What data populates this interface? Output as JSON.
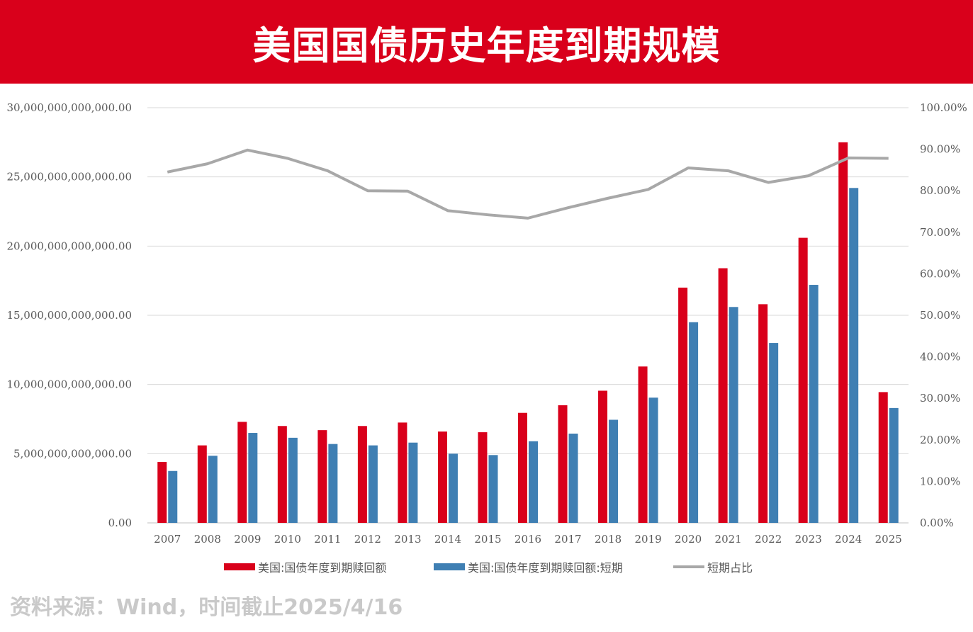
{
  "header": {
    "title": "美国国债历史年度到期规模"
  },
  "source": "资料来源：Wind，时间截止2025/4/16",
  "colors": {
    "header": "#d9001b",
    "series_total": "#d9001b",
    "series_short": "#3f7fb3",
    "series_ratio": "#a8a8a8"
  },
  "legend": [
    {
      "label": "美国:国债年度到期赎回额",
      "kind": "bar",
      "color": "#d9001b"
    },
    {
      "label": "美国:国债年度到期赎回额:短期",
      "kind": "bar",
      "color": "#3f7fb3"
    },
    {
      "label": "短期占比",
      "kind": "line",
      "color": "#a8a8a8"
    }
  ],
  "chart_data": {
    "type": "bar",
    "categories": [
      "2007",
      "2008",
      "2009",
      "2010",
      "2011",
      "2012",
      "2013",
      "2014",
      "2015",
      "2016",
      "2017",
      "2018",
      "2019",
      "2020",
      "2021",
      "2022",
      "2023",
      "2024",
      "2025"
    ],
    "series": [
      {
        "name": "美国:国债年度到期赎回额",
        "type": "bar",
        "axis": "left",
        "values": [
          4400000000000.0,
          5600000000000.0,
          7300000000000.0,
          7000000000000.0,
          6700000000000.0,
          7000000000000.0,
          7250000000000.0,
          6600000000000.0,
          6550000000000.0,
          7950000000000.0,
          8500000000000.0,
          9550000000000.0,
          11300000000000.0,
          17000000000000.0,
          18400000000000.0,
          15800000000000.0,
          20600000000000.0,
          27500000000000.0,
          9450000000000.0
        ]
      },
      {
        "name": "美国:国债年度到期赎回额:短期",
        "type": "bar",
        "axis": "left",
        "values": [
          3750000000000.0,
          4850000000000.0,
          6500000000000.0,
          6150000000000.0,
          5700000000000.0,
          5600000000000.0,
          5800000000000.0,
          5000000000000.0,
          4900000000000.0,
          5900000000000.0,
          6450000000000.0,
          7450000000000.0,
          9050000000000.0,
          14500000000000.0,
          15600000000000.0,
          13000000000000.0,
          17200000000000.0,
          24200000000000.0,
          8300000000000.0
        ]
      },
      {
        "name": "短期占比",
        "type": "line",
        "axis": "right",
        "values": [
          84.5,
          86.5,
          89.8,
          87.8,
          84.8,
          80.0,
          79.9,
          75.2,
          74.2,
          73.4,
          75.9,
          78.2,
          80.3,
          85.5,
          84.8,
          82.0,
          83.6,
          87.9,
          87.8
        ]
      }
    ],
    "left_axis": {
      "ylim": [
        0,
        30000000000000
      ],
      "ticks": [
        "0.00",
        "5,000,000,000,000.00",
        "10,000,000,000,000.00",
        "15,000,000,000,000.00",
        "20,000,000,000,000.00",
        "25,000,000,000,000.00",
        "30,000,000,000,000.00"
      ]
    },
    "right_axis": {
      "ylim": [
        0,
        100
      ],
      "ticks": [
        "0.00%",
        "10.00%",
        "20.00%",
        "30.00%",
        "40.00%",
        "50.00%",
        "60.00%",
        "70.00%",
        "80.00%",
        "90.00%",
        "100.00%"
      ]
    },
    "grid": true,
    "legend_position": "bottom"
  }
}
